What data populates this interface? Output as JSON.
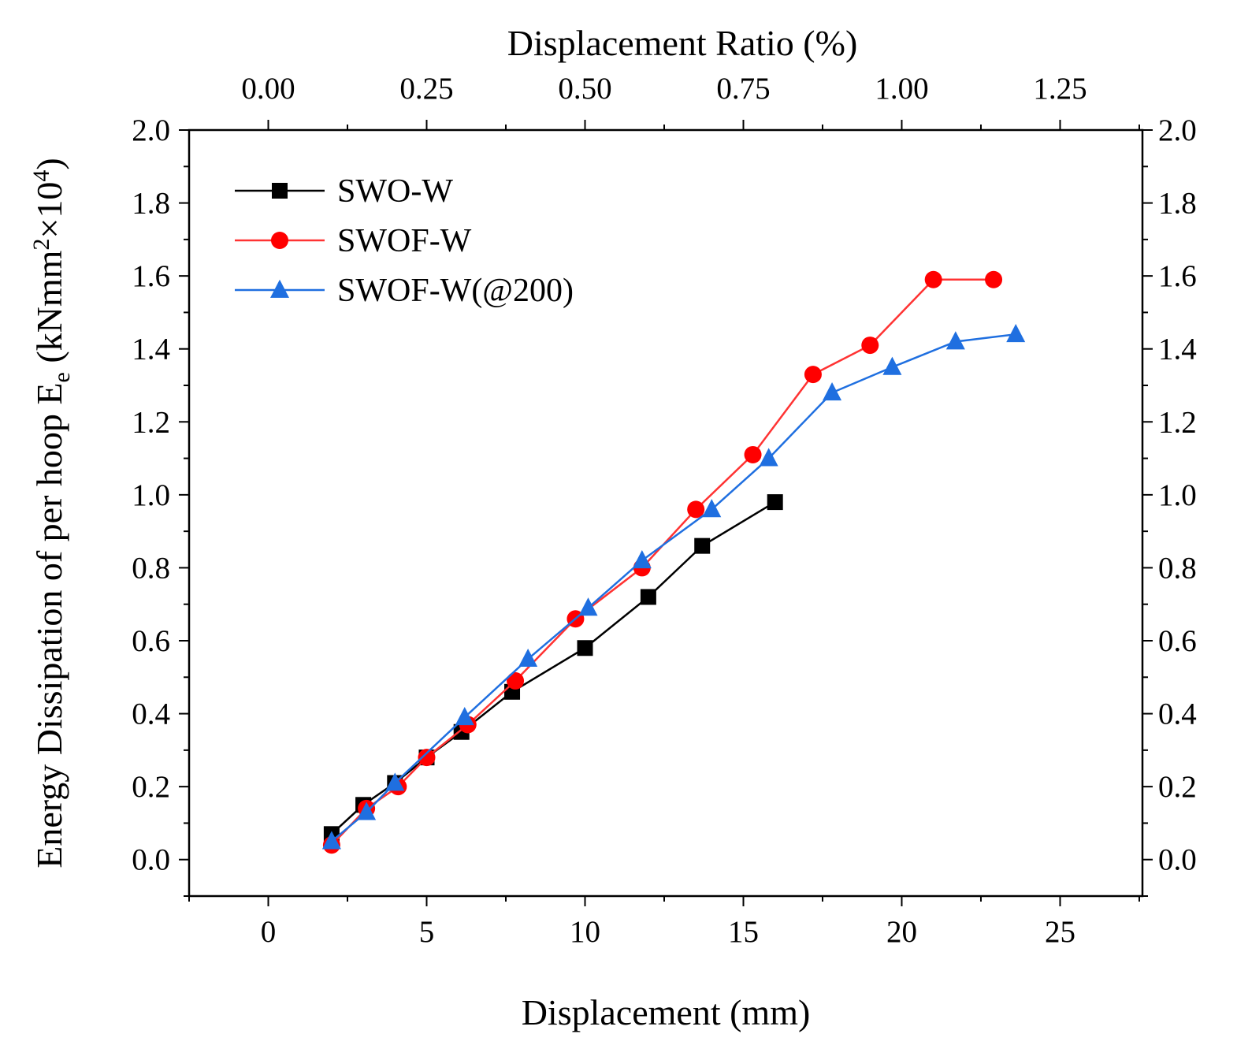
{
  "chart_data": {
    "type": "line",
    "xlabel": "Displacement  (mm)",
    "ylabel_main": "Energy Dissipation of per hoop E",
    "ylabel_sub": "e",
    "ylabel_unit_open": " (kNmm",
    "ylabel_unit_sup": "2",
    "ylabel_unit_mid": "×10",
    "ylabel_unit_sup2": "4",
    "ylabel_unit_close": ")",
    "x2label": "Displacement Ratio  (%)",
    "xlim": [
      -2.5,
      27.6
    ],
    "ylim": [
      -0.1,
      2.0
    ],
    "xticks": [
      0,
      5,
      10,
      15,
      20,
      25
    ],
    "xtick_labels": [
      "0",
      "5",
      "10",
      "15",
      "20",
      "25"
    ],
    "yticks": [
      0.0,
      0.2,
      0.4,
      0.6,
      0.8,
      1.0,
      1.2,
      1.4,
      1.6,
      1.8,
      2.0
    ],
    "ytick_labels": [
      "0.0",
      "0.2",
      "0.4",
      "0.6",
      "0.8",
      "1.0",
      "1.2",
      "1.4",
      "1.6",
      "1.8",
      "2.0"
    ],
    "x2ticks": [
      0.0,
      0.25,
      0.5,
      0.75,
      1.0,
      1.25
    ],
    "x2tick_labels": [
      "0.00",
      "0.25",
      "0.50",
      "0.75",
      "1.00",
      "1.25"
    ],
    "x2_per_x": 0.05,
    "legend_position": "top-left",
    "series": [
      {
        "name": "SWO-W",
        "color": "#000000",
        "marker": "square",
        "x": [
          2.0,
          3.0,
          4.0,
          5.0,
          6.1,
          7.7,
          10.0,
          12.0,
          13.7,
          16.0
        ],
        "y": [
          0.07,
          0.15,
          0.21,
          0.28,
          0.35,
          0.46,
          0.58,
          0.72,
          0.86,
          0.98
        ]
      },
      {
        "name": "SWOF-W",
        "color": "#ff0000",
        "marker": "circle",
        "x": [
          2.0,
          3.1,
          4.1,
          5.0,
          6.3,
          7.8,
          9.7,
          11.8,
          13.5,
          15.3,
          17.2,
          19.0,
          21.0,
          22.9
        ],
        "y": [
          0.04,
          0.14,
          0.2,
          0.28,
          0.37,
          0.49,
          0.66,
          0.8,
          0.96,
          1.11,
          1.33,
          1.41,
          1.59,
          1.59
        ],
        "line_color": "#ff3333"
      },
      {
        "name": "SWOF-W(@200)",
        "color": "#1f6fe0",
        "marker": "triangle",
        "x": [
          2.0,
          3.1,
          4.0,
          6.2,
          8.2,
          10.1,
          11.8,
          14.0,
          15.8,
          17.8,
          19.7,
          21.7,
          23.6
        ],
        "y": [
          0.05,
          0.13,
          0.21,
          0.39,
          0.55,
          0.69,
          0.82,
          0.96,
          1.1,
          1.28,
          1.35,
          1.42,
          1.44
        ]
      }
    ]
  }
}
